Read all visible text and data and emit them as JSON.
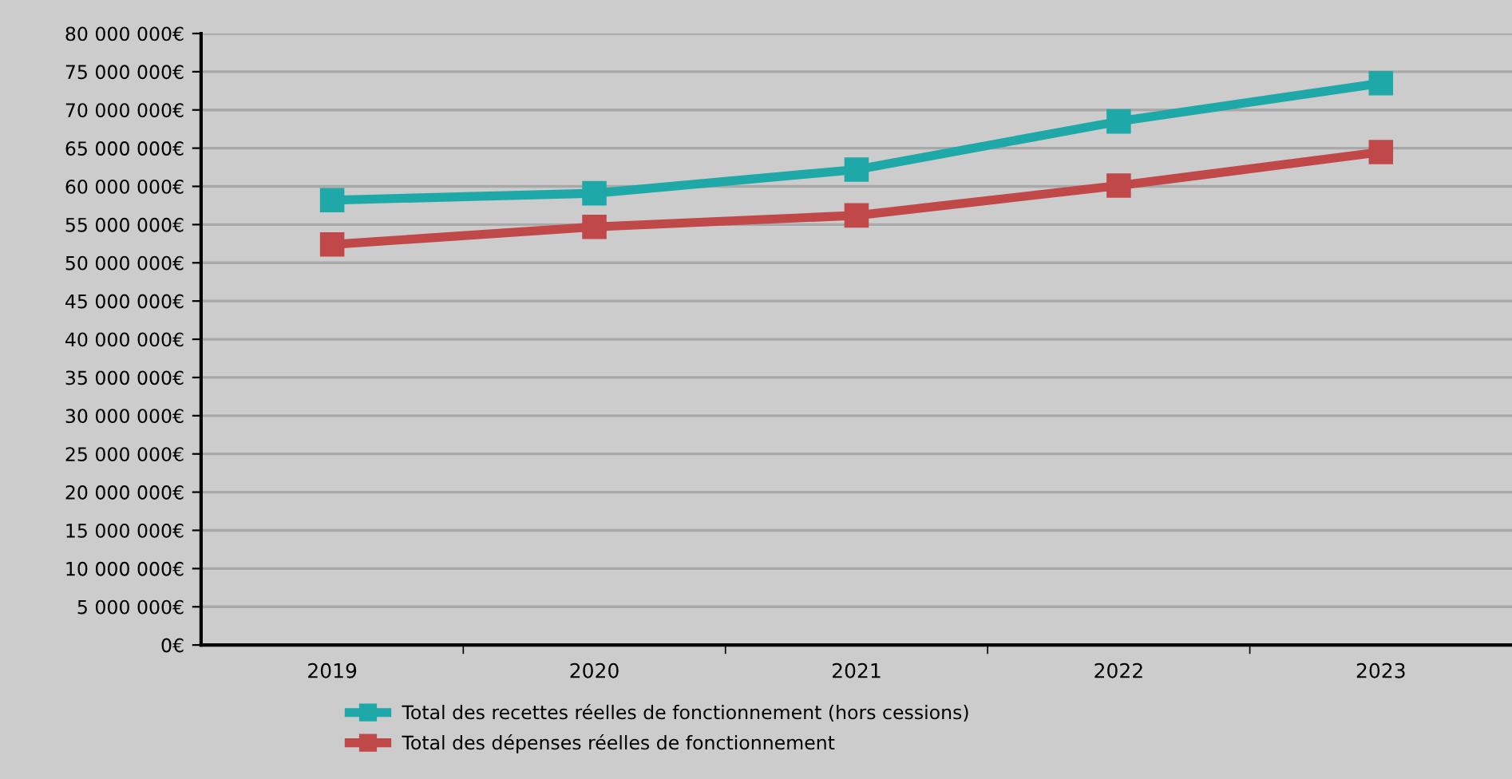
{
  "chart_data": {
    "type": "line",
    "categories": [
      "2019",
      "2020",
      "2021",
      "2022",
      "2023"
    ],
    "series": [
      {
        "name": "Total des recettes réelles de fonctionnement (hors cessions)",
        "color": "#1fa8a8",
        "values": [
          58200000,
          59100000,
          62200000,
          68500000,
          73500000
        ]
      },
      {
        "name": "Total des dépenses réelles de fonctionnement",
        "color": "#c04848",
        "values": [
          52400000,
          54700000,
          56200000,
          60100000,
          64500000
        ]
      }
    ],
    "ylim": [
      0,
      80000000
    ],
    "yticks": [
      {
        "value": 0,
        "label": "0€"
      },
      {
        "value": 5000000,
        "label": "5 000 000€"
      },
      {
        "value": 10000000,
        "label": "10 000 000€"
      },
      {
        "value": 15000000,
        "label": "15 000 000€"
      },
      {
        "value": 20000000,
        "label": "20 000 000€"
      },
      {
        "value": 25000000,
        "label": "25 000 000€"
      },
      {
        "value": 30000000,
        "label": "30 000 000€"
      },
      {
        "value": 35000000,
        "label": "35 000 000€"
      },
      {
        "value": 40000000,
        "label": "40 000 000€"
      },
      {
        "value": 45000000,
        "label": "45 000 000€"
      },
      {
        "value": 50000000,
        "label": "50 000 000€"
      },
      {
        "value": 55000000,
        "label": "55 000 000€"
      },
      {
        "value": 60000000,
        "label": "60 000 000€"
      },
      {
        "value": 65000000,
        "label": "65 000 000€"
      },
      {
        "value": 70000000,
        "label": "70 000 000€"
      },
      {
        "value": 75000000,
        "label": "75 000 000€"
      },
      {
        "value": 80000000,
        "label": "80 000 000€"
      }
    ],
    "grid": "y",
    "legend": "bottom",
    "marker": "square",
    "line_style": "solid"
  }
}
